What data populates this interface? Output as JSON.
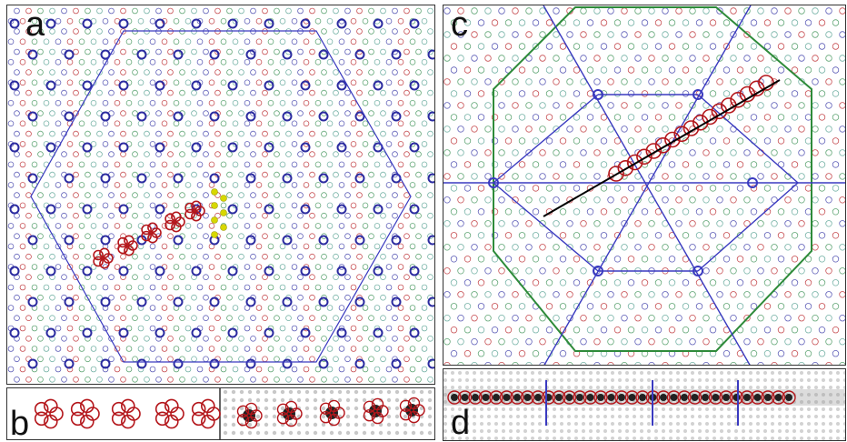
{
  "panels": {
    "a": {
      "label": "a"
    },
    "b": {
      "label": "b"
    },
    "c": {
      "label": "c"
    },
    "d": {
      "label": "d"
    }
  },
  "colors": {
    "blue": "#2b2ba0",
    "red": "#b4161b",
    "green": "#2f8a4a",
    "teal": "#4a9a8a",
    "yellow": "#d8d800",
    "black": "#000000",
    "greenBoundary": "#2e8b3a"
  }
}
